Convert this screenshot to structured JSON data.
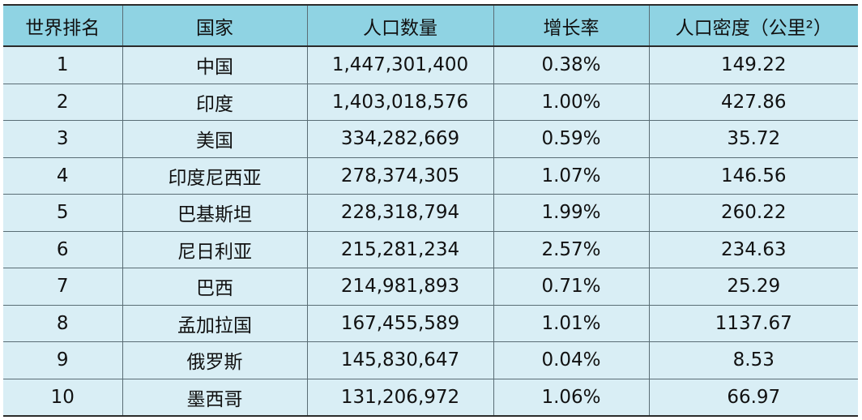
{
  "chart_data": {
    "type": "table",
    "columns": [
      "世界排名",
      "国家",
      "人口数量",
      "增长率",
      "人口密度（公里²）"
    ],
    "rows": [
      [
        "1",
        "中国",
        "1,447,301,400",
        "0.38%",
        "149.22"
      ],
      [
        "2",
        "印度",
        "1,403,018,576",
        "1.00%",
        "427.86"
      ],
      [
        "3",
        "美国",
        "334,282,669",
        "0.59%",
        "35.72"
      ],
      [
        "4",
        "印度尼西亚",
        "278,374,305",
        "1.07%",
        "146.56"
      ],
      [
        "5",
        "巴基斯坦",
        "228,318,794",
        "1.99%",
        "260.22"
      ],
      [
        "6",
        "尼日利亚",
        "215,281,234",
        "2.57%",
        "234.63"
      ],
      [
        "7",
        "巴西",
        "214,981,893",
        "0.71%",
        "25.29"
      ],
      [
        "8",
        "孟加拉国",
        "167,455,589",
        "1.01%",
        "1137.67"
      ],
      [
        "9",
        "俄罗斯",
        "145,830,647",
        "0.04%",
        "8.53"
      ],
      [
        "10",
        "墨西哥",
        "131,206,972",
        "1.06%",
        "66.97"
      ]
    ],
    "colors": {
      "header_bg": "#8fd3e3",
      "row_bg": "#d9eef5",
      "border": "#2b2b2b"
    }
  }
}
